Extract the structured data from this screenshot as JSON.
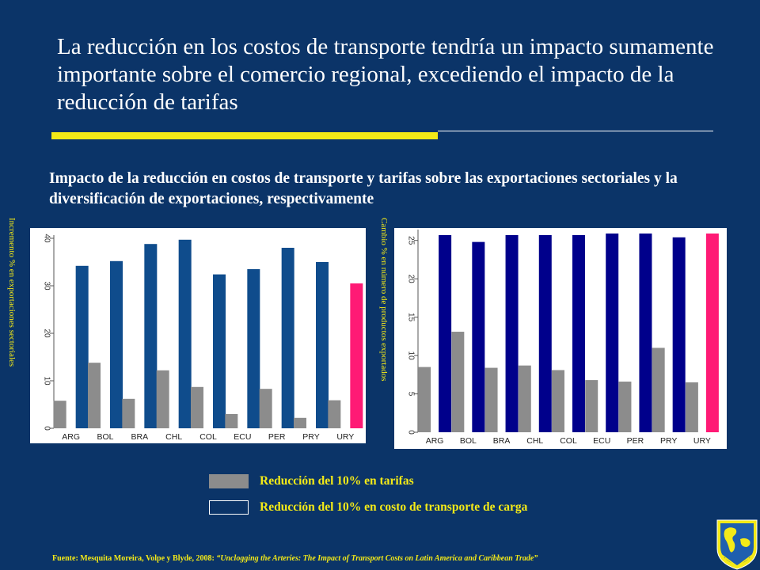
{
  "slide": {
    "title": "La reducción en los costos de transporte tendría un impacto sumamente importante sobre el comercio regional, excediendo el impacto de la reducción de tarifas",
    "subtitle": "Impacto de la reducción en costos de transporte y tarifas sobre las exportaciones sectoriales y la diversificación de exportaciones, respectivamente",
    "legend": {
      "tariffs": "Reducción del 10% en tarifas",
      "transport": "Reducción del 10% en costo de transporte de carga"
    },
    "source": {
      "prefix": "Fuente: Mesquita Moreira, Volpe y Blyde, 2008: ",
      "title": "“Unclogging the Arteries: The Impact of Transport Costs on Latin America and Caribbean Trade”"
    }
  },
  "colors": {
    "background": "#0b3468",
    "accent_yellow": "#f4ea17",
    "tariff_gray": "#8c8c8c",
    "transport_blue_left": "#0f4c8c",
    "transport_blue_right": "#00008b",
    "highlight_pink": "#ff1a75"
  },
  "chart_data": [
    {
      "type": "bar",
      "ylabel": "Incremento % en exportaciones sectoriales",
      "categories": [
        "ARG",
        "BOL",
        "BRA",
        "CHL",
        "COL",
        "ECU",
        "PER",
        "PRY",
        "URY"
      ],
      "ylim": [
        0,
        40
      ],
      "yticks": [
        "0",
        "10",
        "20",
        "30",
        "40"
      ],
      "grid": false,
      "highlight_category": "URY",
      "series": [
        {
          "name": "Reducción del 10% en tarifas",
          "values": [
            5.8,
            13.8,
            6.2,
            12.2,
            8.7,
            3.0,
            8.3,
            2.2,
            5.9
          ]
        },
        {
          "name": "Reducción del 10% en costo de transporte de carga",
          "values": [
            34.2,
            35.2,
            38.8,
            39.7,
            32.4,
            33.5,
            38.0,
            35.0,
            30.5
          ]
        }
      ]
    },
    {
      "type": "bar",
      "ylabel": "Cambio % en número de productos exportados",
      "categories": [
        "ARG",
        "BOL",
        "BRA",
        "CHL",
        "COL",
        "ECU",
        "PER",
        "PRY",
        "URY"
      ],
      "ylim": [
        0,
        26
      ],
      "yticks": [
        "0",
        "5",
        "10",
        "15",
        "20",
        "25"
      ],
      "grid": false,
      "highlight_category": "URY",
      "series": [
        {
          "name": "Reducción del 10% en tarifas",
          "values": [
            8.5,
            13.1,
            8.4,
            8.7,
            8.1,
            6.8,
            6.6,
            11.0,
            6.5
          ]
        },
        {
          "name": "Reducción del 10% en costo de transporte de carga",
          "values": [
            25.7,
            24.8,
            25.7,
            25.7,
            25.7,
            25.9,
            25.9,
            25.4,
            25.9
          ]
        }
      ]
    }
  ]
}
